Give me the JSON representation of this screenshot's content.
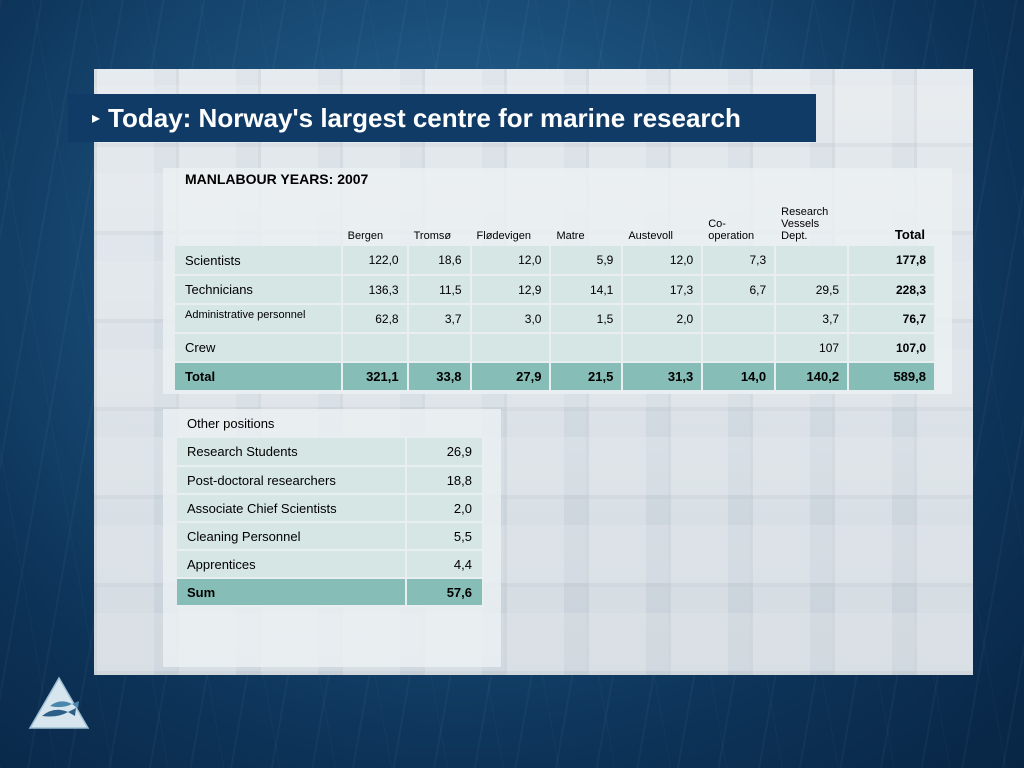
{
  "slide": {
    "bullet": "▸",
    "title": "Today: Norway's largest centre for marine research"
  },
  "main_table": {
    "heading": "MANLABOUR YEARS: 2007",
    "columns": [
      "Bergen",
      "Tromsø",
      "Flødevigen",
      "Matre",
      "Austevoll",
      "Co-\noperation",
      "Research\nVessels\nDept.",
      "Total"
    ],
    "rows": [
      {
        "label": "Scientists",
        "values": [
          "122,0",
          "18,6",
          "12,0",
          "5,9",
          "12,0",
          "7,3",
          "",
          "177,8"
        ]
      },
      {
        "label": "Technicians",
        "values": [
          "136,3",
          "11,5",
          "12,9",
          "14,1",
          "17,3",
          "6,7",
          "29,5",
          "228,3"
        ]
      },
      {
        "label": "Administrative personnel",
        "values": [
          "62,8",
          "3,7",
          "3,0",
          "1,5",
          "2,0",
          "",
          "3,7",
          "76,7"
        ]
      },
      {
        "label": "Crew",
        "values": [
          "",
          "",
          "",
          "",
          "",
          "",
          "107",
          "107,0"
        ]
      }
    ],
    "total_row": {
      "label": "Total",
      "values": [
        "321,1",
        "33,8",
        "27,9",
        "21,5",
        "31,3",
        "14,0",
        "140,2",
        "589,8"
      ]
    }
  },
  "other_table": {
    "heading": "Other positions",
    "rows": [
      {
        "label": "Research Students",
        "value": "26,9"
      },
      {
        "label": "Post-doctoral researchers",
        "value": "18,8"
      },
      {
        "label": "Associate Chief Scientists",
        "value": "2,0"
      },
      {
        "label": "Cleaning Personnel",
        "value": "5,5"
      },
      {
        "label": "Apprentices",
        "value": "4,4"
      }
    ],
    "sum_row": {
      "label": "Sum",
      "value": "57,6"
    }
  },
  "colors": {
    "title_bar": "#0f3b66",
    "row_fill": "#d6e6e4",
    "total_fill": "#86bdb7",
    "background": "#0d3358"
  },
  "icons": {
    "logo": "fish-triangle-logo"
  }
}
